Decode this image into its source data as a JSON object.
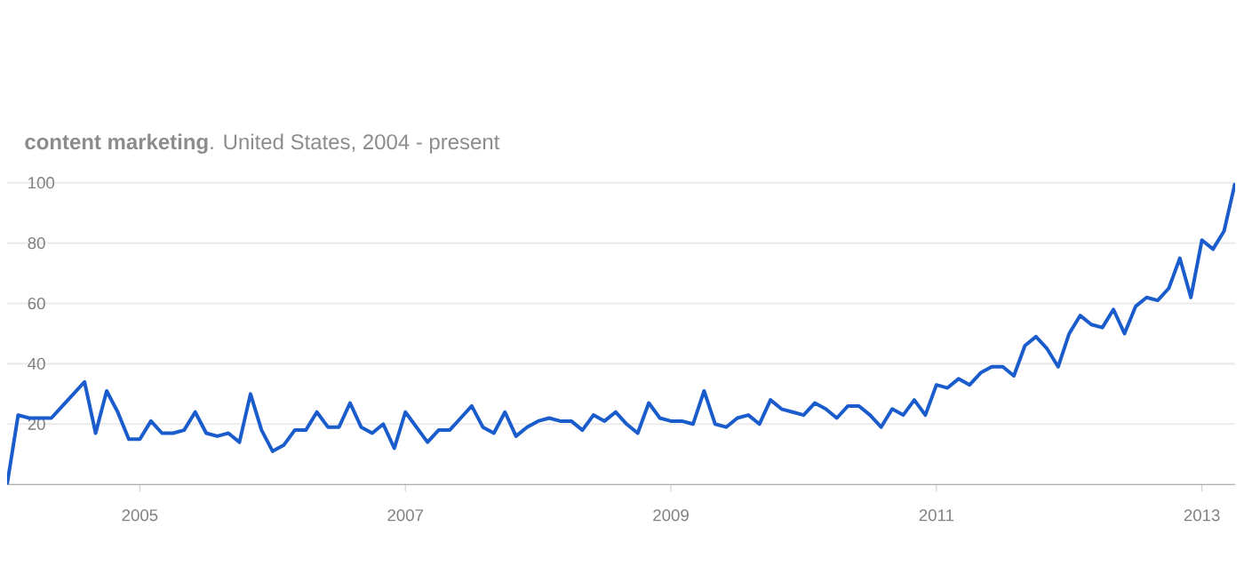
{
  "chart_data": {
    "type": "line",
    "title": "**content marketing**. United States, 2004 - present",
    "x": [
      "2004-01",
      "2004-02",
      "2004-03",
      "2004-04",
      "2004-05",
      "2004-06",
      "2004-07",
      "2004-08",
      "2004-09",
      "2004-10",
      "2004-11",
      "2004-12",
      "2005-01",
      "2005-02",
      "2005-03",
      "2005-04",
      "2005-05",
      "2005-06",
      "2005-07",
      "2005-08",
      "2005-09",
      "2005-10",
      "2005-11",
      "2005-12",
      "2006-01",
      "2006-02",
      "2006-03",
      "2006-04",
      "2006-05",
      "2006-06",
      "2006-07",
      "2006-08",
      "2006-09",
      "2006-10",
      "2006-11",
      "2006-12",
      "2007-01",
      "2007-02",
      "2007-03",
      "2007-04",
      "2007-05",
      "2007-06",
      "2007-07",
      "2007-08",
      "2007-09",
      "2007-10",
      "2007-11",
      "2007-12",
      "2008-01",
      "2008-02",
      "2008-03",
      "2008-04",
      "2008-05",
      "2008-06",
      "2008-07",
      "2008-08",
      "2008-09",
      "2008-10",
      "2008-11",
      "2008-12",
      "2009-01",
      "2009-02",
      "2009-03",
      "2009-04",
      "2009-05",
      "2009-06",
      "2009-07",
      "2009-08",
      "2009-09",
      "2009-10",
      "2009-11",
      "2009-12",
      "2010-01",
      "2010-02",
      "2010-03",
      "2010-04",
      "2010-05",
      "2010-06",
      "2010-07",
      "2010-08",
      "2010-09",
      "2010-10",
      "2010-11",
      "2010-12",
      "2011-01",
      "2011-02",
      "2011-03",
      "2011-04",
      "2011-05",
      "2011-06",
      "2011-07",
      "2011-08",
      "2011-09",
      "2011-10",
      "2011-11",
      "2011-12",
      "2012-01",
      "2012-02",
      "2012-03",
      "2012-04",
      "2012-05",
      "2012-06",
      "2012-07",
      "2012-08",
      "2012-09",
      "2012-10",
      "2012-11",
      "2012-12",
      "2013-01",
      "2013-02",
      "2013-03",
      "2013-04"
    ],
    "series": [
      {
        "color": "#1a5ccc",
        "values": [
          0,
          23,
          22,
          22,
          22,
          26,
          30,
          34,
          17,
          31,
          24,
          15,
          15,
          21,
          17,
          17,
          18,
          24,
          17,
          16,
          17,
          14,
          30,
          18,
          11,
          13,
          18,
          18,
          24,
          19,
          19,
          27,
          19,
          17,
          20,
          12,
          24,
          19,
          14,
          18,
          18,
          22,
          26,
          19,
          17,
          24,
          16,
          19,
          21,
          22,
          21,
          21,
          18,
          23,
          21,
          24,
          20,
          17,
          27,
          22,
          21,
          21,
          20,
          31,
          20,
          19,
          22,
          23,
          20,
          28,
          25,
          24,
          23,
          27,
          25,
          22,
          26,
          26,
          23,
          19,
          25,
          23,
          28,
          23,
          33,
          32,
          35,
          33,
          37,
          39,
          39,
          36,
          46,
          49,
          45,
          39,
          50,
          56,
          53,
          52,
          58,
          50,
          59,
          62,
          61,
          65,
          75,
          62,
          81,
          78,
          84,
          100
        ]
      }
    ],
    "xlim": [
      "2004-01",
      "2013-04"
    ],
    "xticks": [
      {
        "value": "2005-01",
        "label": "2005"
      },
      {
        "value": "2007-01",
        "label": "2007"
      },
      {
        "value": "2009-01",
        "label": "2009"
      },
      {
        "value": "2011-01",
        "label": "2011"
      },
      {
        "value": "2013-01",
        "label": "2013"
      }
    ],
    "ylim": [
      0,
      100
    ],
    "yticks": [
      20,
      40,
      60,
      80,
      100
    ],
    "grid": "y",
    "marker": "none",
    "line_style": "solid"
  }
}
